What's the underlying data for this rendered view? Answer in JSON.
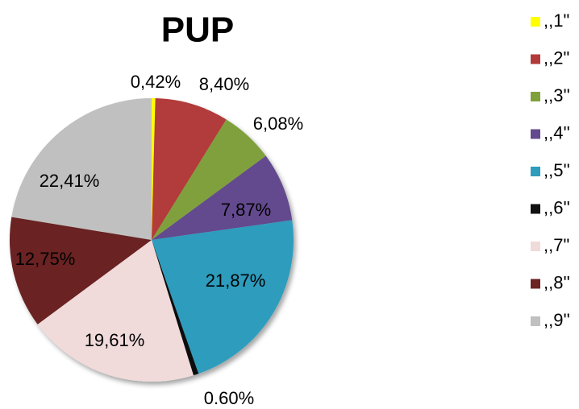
{
  "chart_data": {
    "type": "pie",
    "title": "PUP",
    "categories": [
      ",,1\"",
      ",,2\"",
      ",,3''",
      ",,4''",
      ",,5''",
      ",,6''",
      ",,7\"",
      ",,8''",
      ",,9''"
    ],
    "values": [
      0.42,
      8.4,
      6.08,
      7.87,
      21.87,
      0.6,
      19.61,
      12.75,
      22.41
    ],
    "value_labels": [
      "0,42%",
      "8,40%",
      "6,08%",
      "7,87%",
      "21,87%",
      "0.60%",
      "19,61%",
      "12,75%",
      "22,41%"
    ],
    "colors": [
      "#ffff00",
      "#b23a3a",
      "#80a03c",
      "#634a8e",
      "#2e9cbd",
      "#111111",
      "#f1dada",
      "#6b2323",
      "#c0c0c0"
    ],
    "legend": "right"
  }
}
